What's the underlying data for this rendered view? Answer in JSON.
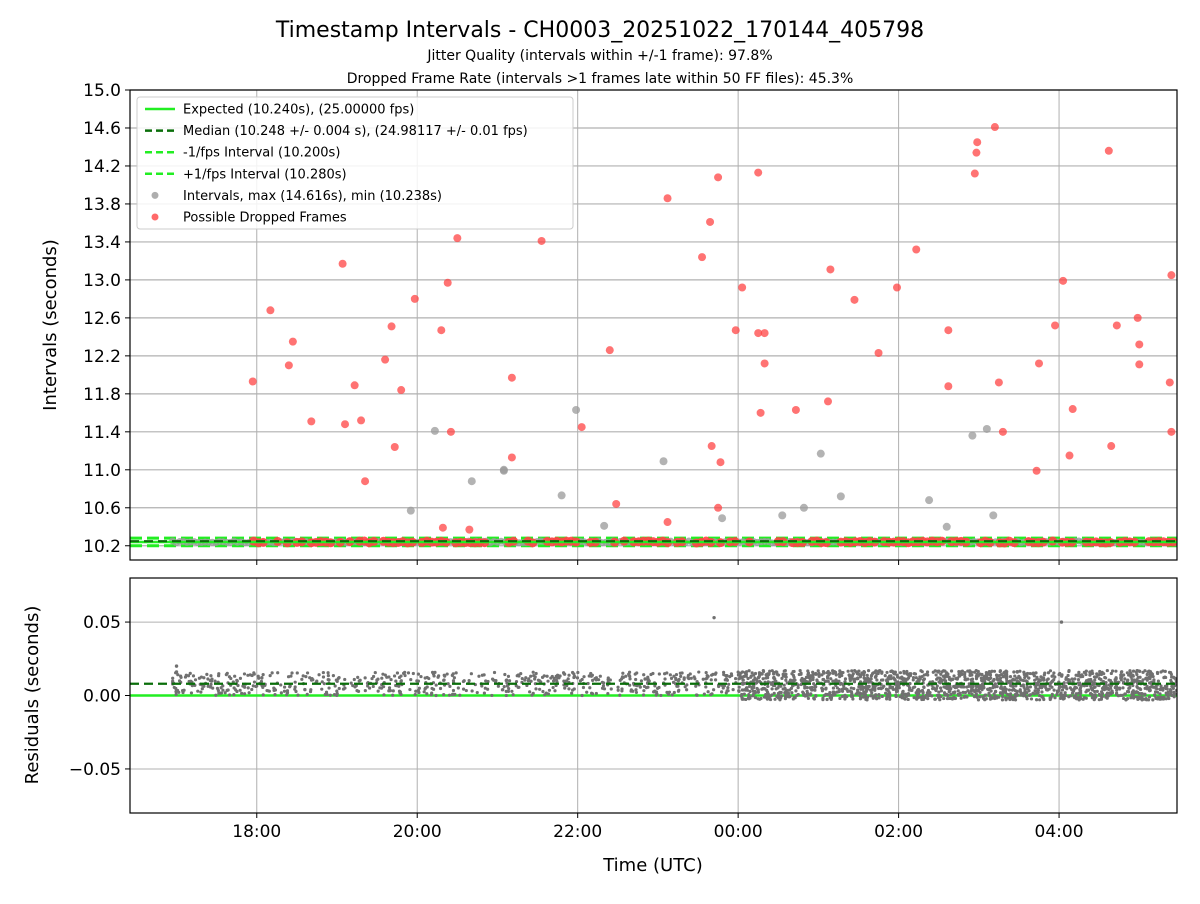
{
  "title": "Timestamp Intervals - CH0003_20251022_170144_405798",
  "subtitle1": "Jitter Quality (intervals within +/-1 frame): 97.8%",
  "subtitle2": "Dropped Frame Rate (intervals >1 frames late within 50 FF files): 45.3%",
  "colors": {
    "expected": "#22ee22",
    "median": "#0a6e0a",
    "fps_band": "#22ee22",
    "intervals": "#9a9a9a",
    "dropped": "#ff4444",
    "residuals": "#707070",
    "grid": "#b0b0b0"
  },
  "chart_data": [
    {
      "type": "scatter",
      "ylabel": "Intervals (seconds)",
      "xlim_hours": [
        16.42,
        29.47
      ],
      "ylim": [
        10.05,
        15.0
      ],
      "yticks": [
        "10.2",
        "10.6",
        "11.0",
        "11.4",
        "11.8",
        "12.2",
        "12.6",
        "13.0",
        "13.4",
        "13.8",
        "14.2",
        "14.6",
        "15.0"
      ],
      "ytick_values": [
        10.2,
        10.6,
        11.0,
        11.4,
        11.8,
        12.2,
        12.6,
        13.0,
        13.4,
        13.8,
        14.2,
        14.6,
        15.0
      ],
      "grid": "horizontal",
      "legend_position": "top-left",
      "legend": [
        "Expected (10.240s), (25.00000 fps)",
        "Median (10.248 +/- 0.004 s), (24.98117 +/- 0.01 fps)",
        "-1/fps Interval (10.200s)",
        "+1/fps Interval (10.280s)",
        "Intervals, max (14.616s), min (10.238s)",
        "Possible Dropped Frames"
      ],
      "lines": {
        "expected": 10.24,
        "median": 10.248,
        "minus_one": 10.2,
        "plus_one": 10.28
      },
      "series": [
        {
          "name": "Intervals, max (14.616s), min (10.238s)",
          "points": [
            [
              20.22,
              11.41
            ],
            [
              20.68,
              10.88
            ],
            [
              21.08,
              10.99
            ],
            [
              21.08,
              11.0
            ],
            [
              21.8,
              10.73
            ],
            [
              21.98,
              11.63
            ],
            [
              22.33,
              10.41
            ],
            [
              23.07,
              11.09
            ],
            [
              23.8,
              10.49
            ],
            [
              24.55,
              10.52
            ],
            [
              24.82,
              10.6
            ],
            [
              25.03,
              11.17
            ],
            [
              25.28,
              10.72
            ],
            [
              26.38,
              10.68
            ],
            [
              26.6,
              10.4
            ],
            [
              26.92,
              11.36
            ],
            [
              27.1,
              11.43
            ],
            [
              27.18,
              10.52
            ],
            [
              19.92,
              10.57
            ]
          ]
        },
        {
          "name": "Possible Dropped Frames",
          "points": [
            [
              17.95,
              11.93
            ],
            [
              18.17,
              12.68
            ],
            [
              18.4,
              12.1
            ],
            [
              18.45,
              12.35
            ],
            [
              18.68,
              11.51
            ],
            [
              19.07,
              13.17
            ],
            [
              19.1,
              11.48
            ],
            [
              19.22,
              11.89
            ],
            [
              19.3,
              11.52
            ],
            [
              19.35,
              10.88
            ],
            [
              19.6,
              12.16
            ],
            [
              19.68,
              12.51
            ],
            [
              19.72,
              11.24
            ],
            [
              19.8,
              11.84
            ],
            [
              19.97,
              12.8
            ],
            [
              20.3,
              12.47
            ],
            [
              20.38,
              12.97
            ],
            [
              20.42,
              11.4
            ],
            [
              20.5,
              13.44
            ],
            [
              20.32,
              10.39
            ],
            [
              20.65,
              10.37
            ],
            [
              21.18,
              11.97
            ],
            [
              21.18,
              11.13
            ],
            [
              21.55,
              13.41
            ],
            [
              22.05,
              11.45
            ],
            [
              22.4,
              12.26
            ],
            [
              22.48,
              10.64
            ],
            [
              23.12,
              13.86
            ],
            [
              23.12,
              10.45
            ],
            [
              23.55,
              13.24
            ],
            [
              23.65,
              13.61
            ],
            [
              23.67,
              11.25
            ],
            [
              23.75,
              14.08
            ],
            [
              23.75,
              10.6
            ],
            [
              23.78,
              11.08
            ],
            [
              23.97,
              12.47
            ],
            [
              24.05,
              12.92
            ],
            [
              24.25,
              12.44
            ],
            [
              24.28,
              11.6
            ],
            [
              24.33,
              12.44
            ],
            [
              24.33,
              12.12
            ],
            [
              24.25,
              14.13
            ],
            [
              24.72,
              11.63
            ],
            [
              25.12,
              11.72
            ],
            [
              25.15,
              13.11
            ],
            [
              25.45,
              12.79
            ],
            [
              25.75,
              12.23
            ],
            [
              25.98,
              12.92
            ],
            [
              26.22,
              13.32
            ],
            [
              26.62,
              12.47
            ],
            [
              26.62,
              11.88
            ],
            [
              26.95,
              14.12
            ],
            [
              26.97,
              14.34
            ],
            [
              26.98,
              14.45
            ],
            [
              27.2,
              14.61
            ],
            [
              27.25,
              11.92
            ],
            [
              27.3,
              11.4
            ],
            [
              27.72,
              10.99
            ],
            [
              27.75,
              12.12
            ],
            [
              27.95,
              12.52
            ],
            [
              28.05,
              12.99
            ],
            [
              28.13,
              11.15
            ],
            [
              28.17,
              11.64
            ],
            [
              28.62,
              14.36
            ],
            [
              28.65,
              11.25
            ],
            [
              28.72,
              12.52
            ],
            [
              28.98,
              12.6
            ],
            [
              29.0,
              12.32
            ],
            [
              29.0,
              12.11
            ],
            [
              29.38,
              11.92
            ],
            [
              29.4,
              11.4
            ],
            [
              29.4,
              13.05
            ]
          ]
        }
      ]
    },
    {
      "type": "scatter",
      "xlabel": "Time (UTC)",
      "ylabel": "Residuals (seconds)",
      "xlim_hours": [
        16.42,
        29.47
      ],
      "ylim": [
        -0.08,
        0.08
      ],
      "yticks": [
        "0.05",
        "0.00",
        "−0.05"
      ],
      "ytick_values": [
        0.05,
        0.0,
        -0.05
      ],
      "xticks": [
        "18:00",
        "20:00",
        "22:00",
        "00:00",
        "02:00",
        "04:00"
      ],
      "xtick_values": [
        18,
        20,
        22,
        24,
        26,
        28
      ],
      "grid": "both",
      "lines": {
        "expected": 0.0,
        "median": 0.008
      },
      "series": [
        {
          "name": "residuals",
          "outliers": [
            [
              23.7,
              0.053
            ],
            [
              28.03,
              0.05
            ],
            [
              17.0,
              0.02
            ],
            [
              17.0,
              0.016
            ]
          ],
          "bands": [
            {
              "from_hour": 16.95,
              "to_hour": 24.0,
              "center": 0.008,
              "spread": 0.008,
              "density_per_hour": 90
            },
            {
              "from_hour": 24.0,
              "to_hour": 29.47,
              "center": 0.007,
              "spread": 0.01,
              "density_per_hour": 300
            }
          ]
        }
      ]
    }
  ]
}
